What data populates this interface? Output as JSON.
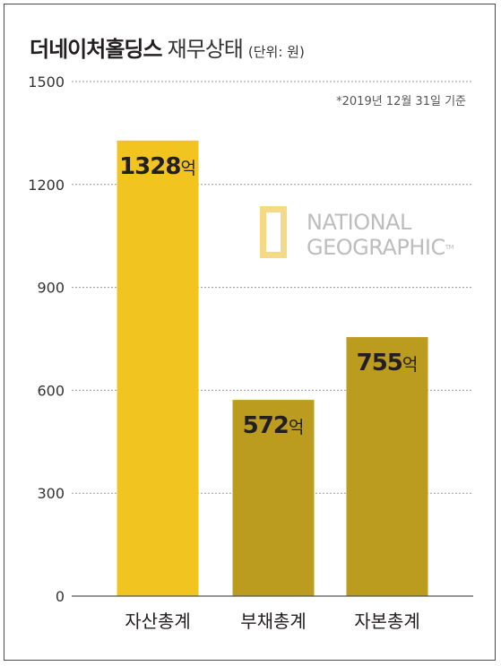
{
  "header": {
    "title_main": "더네이처홀딩스",
    "title_sub": "재무상태",
    "unit": "(단위: 원)"
  },
  "note": "*2019년 12월 31일 기준",
  "logo": {
    "line1": "NATIONAL",
    "line2": "GEOGRAPHIC",
    "tm": "TM"
  },
  "chart_data": {
    "type": "bar",
    "categories": [
      "자산총계",
      "부채총계",
      "자본총계"
    ],
    "values": [
      1328,
      572,
      755
    ],
    "value_labels": [
      "1328억",
      "572억",
      "755억"
    ],
    "value_suffix": "억",
    "ylim": [
      0,
      1500
    ],
    "yticks": [
      0,
      300,
      600,
      900,
      1200,
      1500
    ],
    "grid": true,
    "colors": [
      "#f2c41f",
      "#bc9c1e",
      "#bc9c1e"
    ],
    "xlabel": "",
    "ylabel": ""
  }
}
